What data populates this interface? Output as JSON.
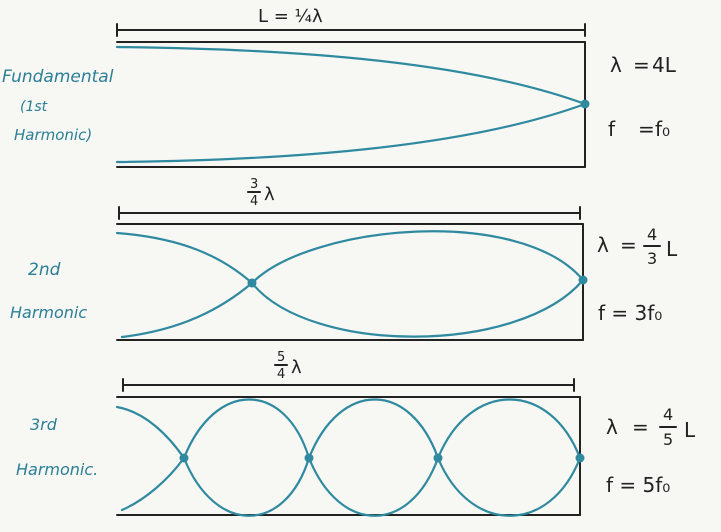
{
  "panels": [
    {
      "id": "fundamental",
      "label_lines": [
        "Fundamental",
        "(1st",
        "Harmonic)"
      ],
      "length_label": "L = ¼λ",
      "wavelength": {
        "lhs": "λ",
        "eq": "=",
        "rhs": "4L"
      },
      "frequency": {
        "lhs": "f",
        "eq": "=",
        "rhs": "f₀"
      }
    },
    {
      "id": "second",
      "label_lines": [
        "2nd",
        "Harmonic"
      ],
      "length_label": {
        "num": "3",
        "den": "4",
        "sym": "λ"
      },
      "wavelength": {
        "lhs": "λ",
        "eq": "=",
        "num": "4",
        "den": "3",
        "sym": "L"
      },
      "frequency": {
        "text": "f = 3f₀"
      }
    },
    {
      "id": "third",
      "label_lines": [
        "3rd",
        "Harmonic."
      ],
      "length_label": {
        "num": "5",
        "den": "4",
        "sym": "λ"
      },
      "wavelength": {
        "lhs": "λ",
        "eq": "=",
        "num": "4",
        "den": "5",
        "sym": "L"
      },
      "frequency": {
        "text": "f = 5f₀"
      }
    }
  ],
  "colors": {
    "wave": "#2f8aa0",
    "ink": "#222222",
    "label": "#2b7f96"
  }
}
